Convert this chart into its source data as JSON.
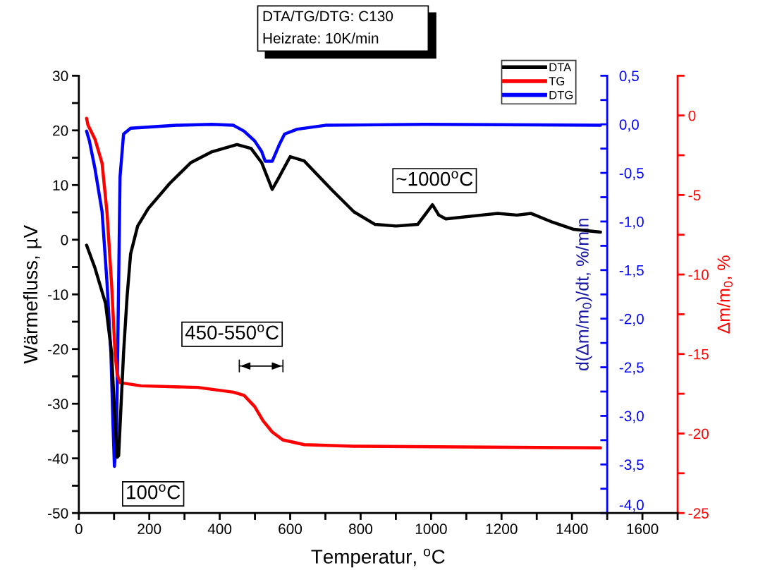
{
  "chart_data": {
    "type": "line",
    "title": "DTA/TG/DTG: C130",
    "subtitle": "Heizrate: 10K/min",
    "xlabel": "Temperatur, $^{o}$C",
    "ylabel": "Wärmefluss, µV",
    "y3label": "d(Δm/m$_{0}$)/dt, %/min",
    "y2label": "Δm/m$_{0}$, %",
    "annotations": [
      "100$^{o}$C",
      "450-550$^{o}$C",
      "~1000$^{o}$C"
    ],
    "xlim": [
      0,
      1700
    ],
    "xticks": [
      0,
      {
        "value": 100,
        "label": null
      },
      200,
      {
        "value": 300,
        "label": null
      },
      400,
      {
        "value": 500,
        "label": null
      },
      600,
      {
        "value": 700,
        "label": null
      },
      800,
      {
        "value": 900,
        "label": null
      },
      1000,
      {
        "value": 1100,
        "label": null
      },
      1200,
      {
        "value": 1300,
        "label": null
      },
      1400,
      {
        "value": 1500,
        "label": null
      },
      1600,
      {
        "value": 1700,
        "label": null
      }
    ],
    "ylim": [
      -50,
      30
    ],
    "yticks": [
      -50,
      {
        "value": -45,
        "label": null
      },
      -40,
      {
        "value": -35,
        "label": null
      },
      -30,
      {
        "value": -25,
        "label": null
      },
      -20,
      {
        "value": -15,
        "label": null
      },
      -10,
      {
        "value": -5,
        "label": null
      },
      0,
      {
        "value": 5,
        "label": null
      },
      10,
      {
        "value": 15,
        "label": null
      },
      20,
      {
        "value": 25,
        "label": null
      },
      30
    ],
    "y3lim": [
      -4.0,
      0.5
    ],
    "y3ticks": [
      {
        "value": -4.0,
        "label": "-4,0"
      },
      {
        "value": -3.5,
        "label": "-3,5"
      },
      {
        "value": -3.0,
        "label": "-3,0"
      },
      {
        "value": -2.5,
        "label": "-2,5"
      },
      {
        "value": -2.0,
        "label": "-2,0"
      },
      {
        "value": -1.5,
        "label": "-1,5"
      },
      {
        "value": -1.0,
        "label": "-1,0"
      },
      {
        "value": -0.5,
        "label": "-0,5"
      },
      {
        "value": 0.0,
        "label": "0,0"
      },
      {
        "value": 0.5,
        "label": "0,5"
      }
    ],
    "y2lim": [
      -25,
      2.5
    ],
    "y2ticks": [
      -25,
      {
        "value": -22.5,
        "label": null
      },
      -20,
      {
        "value": -17.5,
        "label": null
      },
      -15,
      {
        "value": -12.5,
        "label": null
      },
      -10,
      {
        "value": -7.5,
        "label": null
      },
      -5,
      {
        "value": -2.5,
        "label": null
      },
      0,
      {
        "value": 2.5,
        "label": null
      }
    ],
    "legend": "top right",
    "grid": false,
    "series": [
      {
        "name": "DTA",
        "color": "#000000",
        "axis": "y",
        "x": [
          22,
          46,
          76,
          93,
          103,
          109,
          113,
          127,
          137,
          147,
          167,
          197,
          258,
          318,
          378,
          449,
          489,
          519,
          549,
          569,
          600,
          640,
          720,
          781,
          841,
          901,
          962,
          982,
          1004,
          1022,
          1042,
          1143,
          1189,
          1244,
          1284,
          1345,
          1405,
          1481
        ],
        "values": [
          -1.0,
          -5.2,
          -11.7,
          -20.7,
          -33.6,
          -39.8,
          -39.5,
          -20.7,
          -10.4,
          -2.6,
          2.5,
          5.7,
          10.3,
          14.1,
          16.1,
          17.4,
          16.7,
          14.1,
          9.2,
          11.5,
          15.2,
          14.4,
          9.0,
          5.1,
          2.8,
          2.5,
          2.8,
          4.5,
          6.4,
          4.5,
          3.8,
          4.5,
          4.8,
          4.5,
          4.8,
          3.2,
          1.9,
          1.4
        ]
      },
      {
        "name": "TG",
        "color": "#ff0000",
        "axis": "y2",
        "x": [
          22,
          26,
          46,
          66,
          80,
          93,
          103,
          109,
          117,
          177,
          338,
          439,
          469,
          499,
          523,
          549,
          579,
          640,
          781,
          1481
        ],
        "values": [
          -0.18,
          -0.6,
          -1.5,
          -3.0,
          -6.1,
          -10.6,
          -15.0,
          -16.3,
          -16.8,
          -17.0,
          -17.1,
          -17.4,
          -17.6,
          -18.3,
          -19.2,
          -19.9,
          -20.4,
          -20.7,
          -20.8,
          -20.9
        ]
      },
      {
        "name": "DTG",
        "color": "#0000ff",
        "axis": "y3",
        "x": [
          22,
          30,
          46,
          66,
          80,
          91,
          97,
          101,
          107,
          113,
          117,
          127,
          147,
          278,
          378,
          439,
          469,
          499,
          519,
          529,
          549,
          569,
          584,
          620,
          700,
          982,
          1481
        ],
        "values": [
          -0.07,
          -0.17,
          -0.46,
          -0.9,
          -1.63,
          -2.35,
          -3.08,
          -3.52,
          -3.22,
          -1.63,
          -0.54,
          -0.1,
          -0.04,
          -0.01,
          0.0,
          -0.01,
          -0.07,
          -0.17,
          -0.28,
          -0.38,
          -0.38,
          -0.21,
          -0.1,
          -0.05,
          -0.01,
          0.0,
          -0.01
        ]
      }
    ]
  }
}
